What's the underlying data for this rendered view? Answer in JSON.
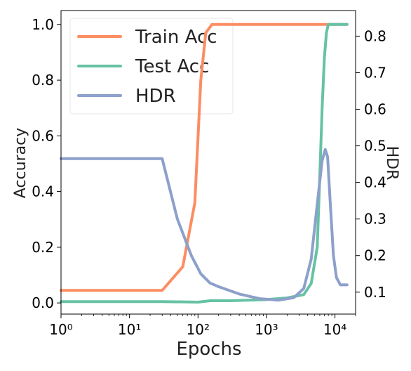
{
  "chart_data": {
    "type": "line",
    "title": "",
    "xlabel": "Epochs",
    "ylabel": "Accuracy",
    "y2label": "HDR",
    "xscale": "log",
    "xlim": [
      1,
      20000
    ],
    "ylim": [
      -0.04,
      1.05
    ],
    "y2lim": [
      0.04,
      0.87
    ],
    "x_ticks": [
      {
        "value": 1,
        "label": "10⁰"
      },
      {
        "value": 10,
        "label": "10¹"
      },
      {
        "value": 100,
        "label": "10²"
      },
      {
        "value": 1000,
        "label": "10³"
      },
      {
        "value": 10000,
        "label": "10⁴"
      }
    ],
    "y_ticks": [
      {
        "value": 0.0,
        "label": "0.0"
      },
      {
        "value": 0.2,
        "label": "0.2"
      },
      {
        "value": 0.4,
        "label": "0.4"
      },
      {
        "value": 0.6,
        "label": "0.6"
      },
      {
        "value": 0.8,
        "label": "0.8"
      },
      {
        "value": 1.0,
        "label": "1.0"
      }
    ],
    "y2_ticks": [
      {
        "value": 0.1,
        "label": "0.1"
      },
      {
        "value": 0.2,
        "label": "0.2"
      },
      {
        "value": 0.3,
        "label": "0.3"
      },
      {
        "value": 0.4,
        "label": "0.4"
      },
      {
        "value": 0.5,
        "label": "0.5"
      },
      {
        "value": 0.6,
        "label": "0.6"
      },
      {
        "value": 0.7,
        "label": "0.7"
      },
      {
        "value": 0.8,
        "label": "0.8"
      }
    ],
    "grid": false,
    "legend_position": "top-left",
    "series": [
      {
        "name": "Train Acc",
        "axis": "left",
        "color": "#fc8d62",
        "x": [
          1,
          30,
          60,
          90,
          110,
          130,
          160,
          1000,
          10000,
          15000
        ],
        "y": [
          0.045,
          0.045,
          0.13,
          0.36,
          0.8,
          0.97,
          1.0,
          1.0,
          1.0,
          1.0
        ]
      },
      {
        "name": "Test Acc",
        "axis": "left",
        "color": "#66c2a5",
        "x": [
          1,
          30,
          100,
          150,
          300,
          1000,
          2000,
          3500,
          4500,
          5500,
          6000,
          6500,
          7000,
          7500,
          8000,
          9000,
          10000,
          15000
        ],
        "y": [
          0.005,
          0.005,
          0.003,
          0.008,
          0.008,
          0.012,
          0.018,
          0.03,
          0.07,
          0.2,
          0.45,
          0.7,
          0.88,
          0.97,
          1.0,
          1.0,
          1.0,
          1.0
        ]
      },
      {
        "name": "HDR",
        "axis": "right",
        "color": "#8da0cb",
        "x": [
          1,
          30,
          50,
          80,
          110,
          150,
          200,
          400,
          800,
          1500,
          2500,
          3500,
          4500,
          5500,
          6500,
          7200,
          7800,
          8500,
          9500,
          10500,
          12000,
          15000
        ],
        "y": [
          0.465,
          0.465,
          0.3,
          0.2,
          0.15,
          0.125,
          0.115,
          0.095,
          0.082,
          0.078,
          0.085,
          0.11,
          0.19,
          0.34,
          0.46,
          0.49,
          0.47,
          0.35,
          0.2,
          0.14,
          0.12,
          0.12
        ]
      }
    ]
  }
}
